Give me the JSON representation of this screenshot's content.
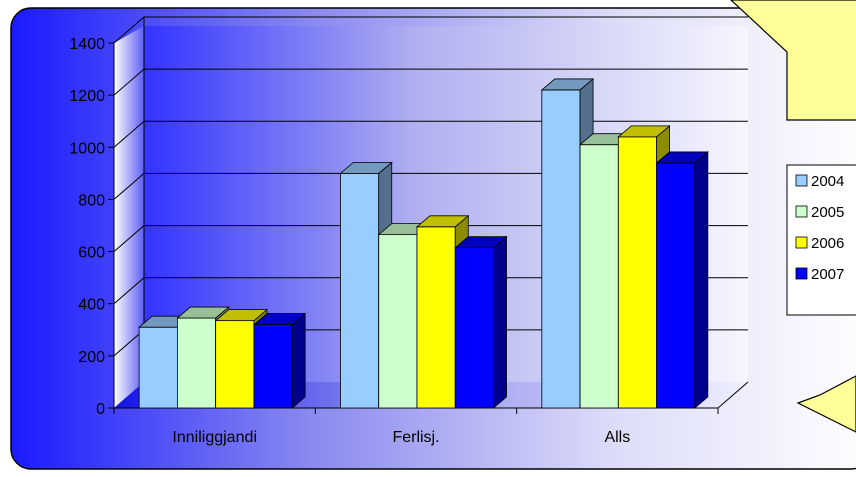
{
  "chart_data": {
    "type": "bar",
    "categories": [
      "Inniliggjandi",
      "Ferlisj.",
      "Alls"
    ],
    "series": [
      {
        "name": "2004",
        "values": [
          310,
          900,
          1220
        ],
        "color": "#99CCFF"
      },
      {
        "name": "2005",
        "values": [
          345,
          665,
          1010
        ],
        "color": "#CCFFCC"
      },
      {
        "name": "2006",
        "values": [
          335,
          695,
          1040
        ],
        "color": "#FFFF00"
      },
      {
        "name": "2007",
        "values": [
          320,
          615,
          940
        ],
        "color": "#0000FF"
      }
    ],
    "ylim": [
      0,
      1400
    ],
    "yticks": [
      "0",
      "200",
      "400",
      "600",
      "800",
      "1000",
      "1200",
      "1400"
    ],
    "grid": true,
    "legend_position": "right",
    "style": "3d-clustered-column"
  }
}
